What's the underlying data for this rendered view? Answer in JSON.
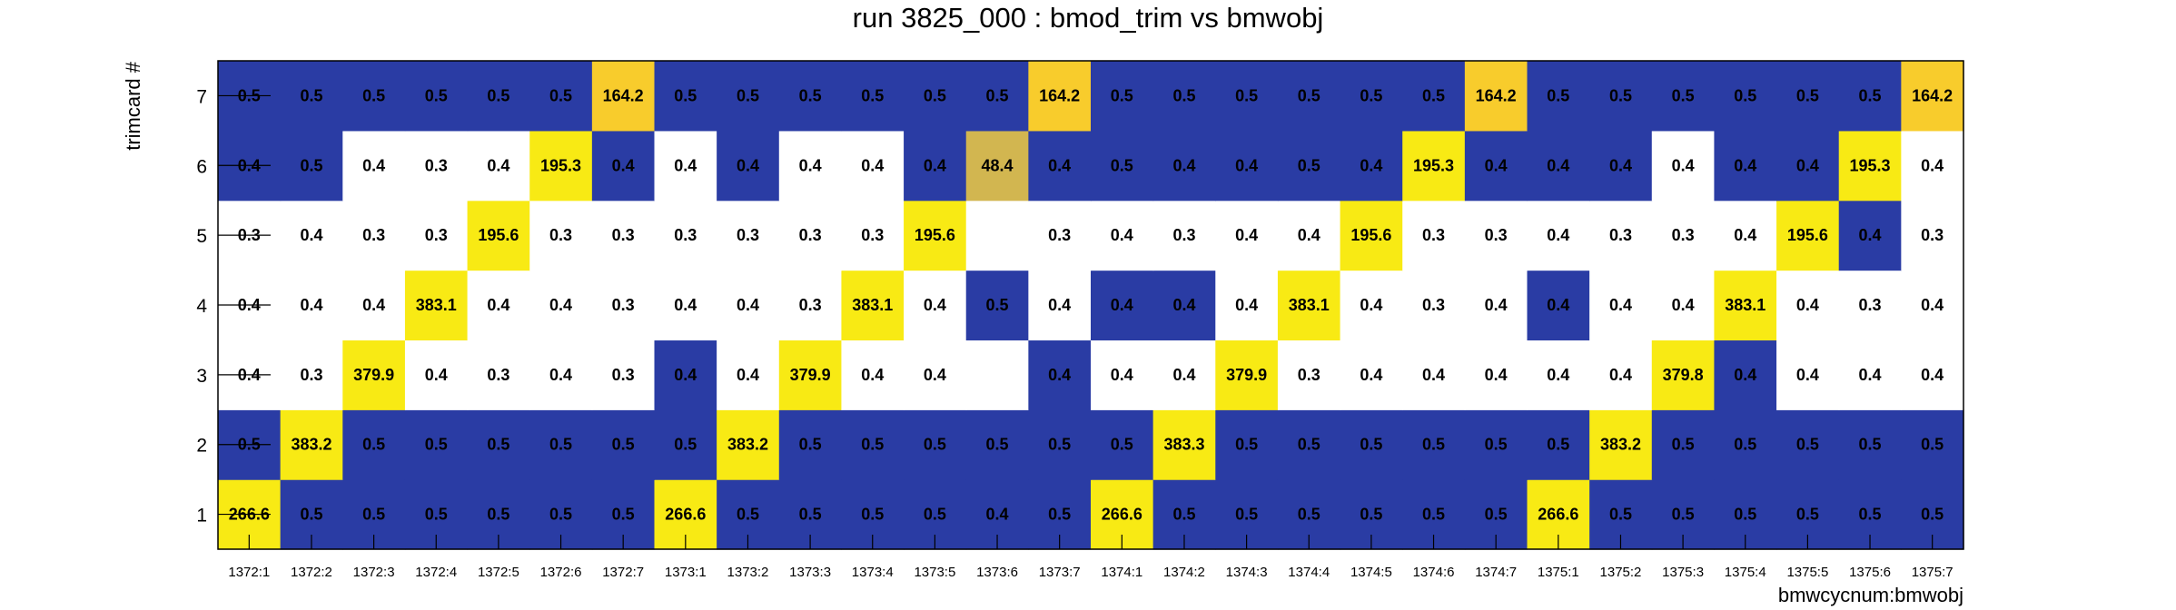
{
  "chart_data": {
    "type": "heatmap",
    "title": "run 3825_000 : bmod_trim vs bmwobj",
    "xlabel": "bmwcycnum:bmwobj",
    "ylabel": "trimcard #",
    "x_categories": [
      "1372:1",
      "1372:2",
      "1372:3",
      "1372:4",
      "1372:5",
      "1372:6",
      "1372:7",
      "1373:1",
      "1373:2",
      "1373:3",
      "1373:4",
      "1373:5",
      "1373:6",
      "1373:7",
      "1374:1",
      "1374:2",
      "1374:3",
      "1374:4",
      "1374:5",
      "1374:6",
      "1374:7",
      "1375:1",
      "1375:2",
      "1375:3",
      "1375:4",
      "1375:5",
      "1375:6",
      "1375:7"
    ],
    "y_categories": [
      "1",
      "2",
      "3",
      "4",
      "5",
      "6",
      "7"
    ],
    "values": [
      [
        266.6,
        0.5,
        0.5,
        0.5,
        0.5,
        0.5,
        0.5,
        266.6,
        0.5,
        0.5,
        0.5,
        0.5,
        0.4,
        0.5,
        266.6,
        0.5,
        0.5,
        0.5,
        0.5,
        0.5,
        0.5,
        266.6,
        0.5,
        0.5,
        0.5,
        0.5,
        0.5,
        0.5
      ],
      [
        0.5,
        383.2,
        0.5,
        0.5,
        0.5,
        0.5,
        0.5,
        0.5,
        383.2,
        0.5,
        0.5,
        0.5,
        0.5,
        0.5,
        0.5,
        383.3,
        0.5,
        0.5,
        0.5,
        0.5,
        0.5,
        0.5,
        383.2,
        0.5,
        0.5,
        0.5,
        0.5,
        0.5
      ],
      [
        0.4,
        0.3,
        379.9,
        0.4,
        0.3,
        0.4,
        0.3,
        0.4,
        0.4,
        379.9,
        0.4,
        0.4,
        null,
        0.4,
        0.4,
        0.4,
        379.9,
        0.3,
        0.4,
        0.4,
        0.4,
        0.4,
        0.4,
        379.8,
        0.4,
        0.4,
        0.4,
        0.4
      ],
      [
        0.4,
        0.4,
        0.4,
        383.1,
        0.4,
        0.4,
        0.3,
        0.4,
        0.4,
        0.3,
        383.1,
        0.4,
        0.5,
        0.4,
        0.4,
        0.4,
        0.4,
        383.1,
        0.4,
        0.3,
        0.4,
        0.4,
        0.4,
        0.4,
        383.1,
        0.4,
        0.3,
        0.4
      ],
      [
        0.3,
        0.4,
        0.3,
        0.3,
        195.6,
        0.3,
        0.3,
        0.3,
        0.3,
        0.3,
        0.3,
        195.6,
        null,
        0.3,
        0.4,
        0.3,
        0.4,
        0.4,
        195.6,
        0.3,
        0.3,
        0.4,
        0.3,
        0.3,
        0.4,
        195.6,
        0.4,
        0.3
      ],
      [
        0.4,
        0.5,
        0.4,
        0.3,
        0.4,
        195.3,
        0.4,
        0.4,
        0.4,
        0.4,
        0.4,
        0.4,
        48.4,
        0.4,
        0.5,
        0.4,
        0.4,
        0.5,
        0.4,
        195.3,
        0.4,
        0.4,
        0.4,
        0.4,
        0.4,
        0.4,
        195.3,
        0.4
      ],
      [
        0.5,
        0.5,
        0.5,
        0.5,
        0.5,
        0.5,
        164.2,
        0.5,
        0.5,
        0.5,
        0.5,
        0.5,
        0.5,
        164.2,
        0.5,
        0.5,
        0.5,
        0.5,
        0.5,
        0.5,
        164.2,
        0.5,
        0.5,
        0.5,
        0.5,
        0.5,
        0.5,
        164.2
      ]
    ],
    "cell_fill": [
      [
        "yellow",
        "blue",
        "blue",
        "blue",
        "blue",
        "blue",
        "blue",
        "yellow",
        "blue",
        "blue",
        "blue",
        "blue",
        "blue",
        "blue",
        "yellow",
        "blue",
        "blue",
        "blue",
        "blue",
        "blue",
        "blue",
        "yellow",
        "blue",
        "blue",
        "blue",
        "blue",
        "blue",
        "blue"
      ],
      [
        "blue",
        "yellow",
        "blue",
        "blue",
        "blue",
        "blue",
        "blue",
        "blue",
        "yellow",
        "blue",
        "blue",
        "blue",
        "blue",
        "blue",
        "blue",
        "yellow",
        "blue",
        "blue",
        "blue",
        "blue",
        "blue",
        "blue",
        "yellow",
        "blue",
        "blue",
        "blue",
        "blue",
        "blue"
      ],
      [
        "white",
        "white",
        "yellow",
        "white",
        "white",
        "white",
        "white",
        "blue",
        "white",
        "yellow",
        "white",
        "white",
        "white",
        "blue",
        "white",
        "white",
        "yellow",
        "white",
        "white",
        "white",
        "white",
        "white",
        "white",
        "yellow",
        "blue",
        "white",
        "white",
        "white"
      ],
      [
        "white",
        "white",
        "white",
        "yellow",
        "white",
        "white",
        "white",
        "white",
        "white",
        "white",
        "yellow",
        "white",
        "blue",
        "white",
        "blue",
        "blue",
        "white",
        "yellow",
        "white",
        "white",
        "white",
        "blue",
        "white",
        "white",
        "yellow",
        "white",
        "white",
        "white"
      ],
      [
        "white",
        "white",
        "white",
        "white",
        "yellow",
        "white",
        "white",
        "white",
        "white",
        "white",
        "white",
        "yellow",
        "white",
        "white",
        "white",
        "white",
        "white",
        "white",
        "yellow",
        "white",
        "white",
        "white",
        "white",
        "white",
        "white",
        "yellow",
        "blue",
        "white"
      ],
      [
        "blue",
        "blue",
        "white",
        "white",
        "white",
        "yellow",
        "blue",
        "white",
        "blue",
        "white",
        "white",
        "blue",
        "tan",
        "blue",
        "blue",
        "blue",
        "blue",
        "blue",
        "blue",
        "yellow",
        "blue",
        "blue",
        "blue",
        "white",
        "blue",
        "blue",
        "yellow",
        "white"
      ],
      [
        "blue",
        "blue",
        "blue",
        "blue",
        "blue",
        "blue",
        "orange",
        "blue",
        "blue",
        "blue",
        "blue",
        "blue",
        "blue",
        "orange",
        "blue",
        "blue",
        "blue",
        "blue",
        "blue",
        "blue",
        "orange",
        "blue",
        "blue",
        "blue",
        "blue",
        "blue",
        "blue",
        "orange"
      ]
    ],
    "colors": {
      "blue": "#2a3ca4",
      "yellow": "#f8ea14",
      "orange": "#f8cc2c",
      "tan": "#d2b650",
      "white": "#ffffff"
    },
    "grid": false,
    "legend": "none"
  }
}
